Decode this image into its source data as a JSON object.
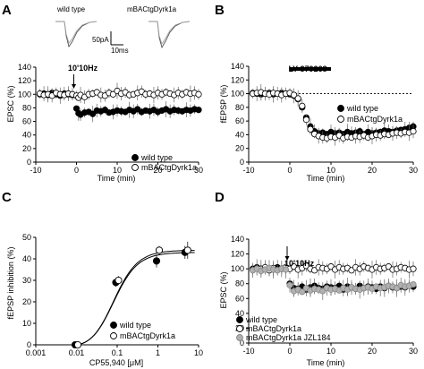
{
  "panels": {
    "A": {
      "label": "A",
      "traces": {
        "wt_label": "wild type",
        "tg_label": "mBACtgDyrk1a",
        "scale_y": "50pA",
        "scale_x": "10ms"
      },
      "annotation": "10'10Hz",
      "ylabel": "EPSC (%)",
      "xlabel": "Time (min)"
    },
    "B": {
      "label": "B",
      "annotation": "LY 379268",
      "ylabel": "fEPSP (%)",
      "xlabel": "Time (min)"
    },
    "C": {
      "label": "C",
      "ylabel": "fEPSP inhibition (%)",
      "xlabel": "CP55,940 [μM]"
    },
    "D": {
      "label": "D",
      "annotation": "10'10Hz",
      "ylabel": "EPSC (%)",
      "xlabel": "Time (min)"
    }
  },
  "chart_data": [
    {
      "panel": "A",
      "type": "scatter",
      "xlim": [
        -10,
        30
      ],
      "ylim": [
        0,
        140
      ],
      "xticks": [
        -10,
        0,
        10,
        20,
        30
      ],
      "yticks": [
        0,
        20,
        40,
        60,
        80,
        100,
        120,
        140
      ],
      "series": [
        {
          "name": "wild type",
          "marker": "filled",
          "x": [
            -9,
            -8,
            -7,
            -6,
            -5,
            -4,
            -3,
            -2,
            -1,
            0,
            0.5,
            1,
            2,
            3,
            4,
            5,
            6,
            7,
            8,
            9,
            10,
            11,
            12,
            13,
            14,
            15,
            16,
            17,
            18,
            19,
            20,
            21,
            22,
            23,
            24,
            25,
            26,
            27,
            28,
            29,
            30
          ],
          "y": [
            100,
            101,
            99,
            102,
            100,
            98,
            101,
            100,
            99,
            79,
            72,
            70,
            73,
            74,
            71,
            76,
            75,
            77,
            73,
            74,
            76,
            75,
            74,
            77,
            75,
            78,
            74,
            76,
            75,
            77,
            74,
            76,
            78,
            75,
            77,
            76,
            75,
            77,
            76,
            78,
            77
          ]
        },
        {
          "name": "mBACtgDyrk1a",
          "marker": "open",
          "x": [
            -9,
            -8,
            -7,
            -6,
            -5,
            -4,
            -3,
            -2,
            -1,
            0,
            0.5,
            1,
            2,
            3,
            4,
            5,
            6,
            7,
            8,
            9,
            10,
            11,
            12,
            13,
            14,
            15,
            16,
            17,
            18,
            19,
            20,
            21,
            22,
            23,
            24,
            25,
            26,
            27,
            28,
            29,
            30
          ],
          "y": [
            101,
            99,
            100,
            98,
            102,
            100,
            99,
            101,
            100,
            98,
            95,
            99,
            96,
            100,
            101,
            103,
            99,
            98,
            102,
            100,
            105,
            101,
            103,
            99,
            100,
            102,
            104,
            100,
            101,
            99,
            102,
            100,
            103,
            101,
            99,
            102,
            100,
            103,
            101,
            102,
            100
          ]
        }
      ]
    },
    {
      "panel": "B",
      "type": "scatter",
      "xlim": [
        -10,
        30
      ],
      "ylim": [
        0,
        140
      ],
      "xticks": [
        -10,
        0,
        10,
        20,
        30
      ],
      "yticks": [
        0,
        20,
        40,
        60,
        80,
        100,
        120,
        140
      ],
      "reference_line": 100,
      "drug_bar": [
        0,
        10
      ],
      "series": [
        {
          "name": "wild type",
          "marker": "filled",
          "x": [
            -9,
            -8,
            -7,
            -6,
            -5,
            -4,
            -3,
            -2,
            -1,
            0,
            1,
            2,
            3,
            4,
            5,
            6,
            7,
            8,
            9,
            10,
            11,
            12,
            13,
            14,
            15,
            16,
            17,
            18,
            19,
            20,
            21,
            22,
            23,
            24,
            25,
            26,
            27,
            28,
            29,
            30
          ],
          "y": [
            101,
            100,
            99,
            100,
            101,
            99,
            100,
            101,
            100,
            99,
            97,
            92,
            80,
            65,
            52,
            45,
            42,
            43,
            41,
            44,
            42,
            43,
            41,
            44,
            42,
            43,
            45,
            41,
            44,
            42,
            43,
            44,
            46,
            45,
            44,
            46,
            47,
            48,
            50,
            52
          ]
        },
        {
          "name": "mBACtgDyrk1a",
          "marker": "open",
          "x": [
            -9,
            -8,
            -7,
            -6,
            -5,
            -4,
            -3,
            -2,
            -1,
            0,
            1,
            2,
            3,
            4,
            5,
            6,
            7,
            8,
            9,
            10,
            11,
            12,
            13,
            14,
            15,
            16,
            17,
            18,
            19,
            20,
            21,
            22,
            23,
            24,
            25,
            26,
            27,
            28,
            29,
            30
          ],
          "y": [
            100,
            101,
            102,
            100,
            99,
            101,
            100,
            98,
            100,
            101,
            98,
            93,
            82,
            62,
            48,
            41,
            38,
            36,
            35,
            37,
            36,
            39,
            35,
            37,
            36,
            38,
            37,
            39,
            36,
            38,
            40,
            39,
            41,
            40,
            42,
            43,
            42,
            44,
            43,
            45
          ]
        }
      ]
    },
    {
      "panel": "C",
      "type": "line",
      "xscale": "log",
      "xlim": [
        0.001,
        10
      ],
      "ylim": [
        0,
        50
      ],
      "xticks": [
        0.001,
        0.01,
        0.1,
        1,
        10
      ],
      "xticklabels": [
        "0.001",
        "0.01",
        "0.1",
        "1",
        "10"
      ],
      "yticks": [
        0,
        10,
        20,
        30,
        40,
        50
      ],
      "series": [
        {
          "name": "wild type",
          "marker": "filled",
          "x": [
            0.01,
            0.1,
            1,
            5
          ],
          "y": [
            0,
            29,
            39,
            43
          ],
          "err": [
            0,
            2,
            3,
            3
          ]
        },
        {
          "name": "mBACtgDyrk1a",
          "marker": "open",
          "x": [
            0.01,
            0.1,
            1,
            5
          ],
          "y": [
            0,
            30,
            44,
            44
          ],
          "err": [
            0,
            2,
            2,
            4
          ]
        }
      ]
    },
    {
      "panel": "D",
      "type": "scatter",
      "xlim": [
        -10,
        30
      ],
      "ylim": [
        0,
        140
      ],
      "xticks": [
        -10,
        0,
        10,
        20,
        30
      ],
      "yticks": [
        0,
        20,
        40,
        60,
        80,
        100,
        120,
        140
      ],
      "series": [
        {
          "name": "wild type",
          "marker": "filled",
          "x": [
            -9,
            -8,
            -7,
            -6,
            -5,
            -4,
            -3,
            -2,
            -1,
            0,
            1,
            2,
            3,
            4,
            5,
            6,
            7,
            8,
            9,
            10,
            11,
            12,
            13,
            14,
            15,
            16,
            17,
            18,
            19,
            20,
            21,
            22,
            23,
            24,
            25,
            26,
            27,
            28,
            29,
            30
          ],
          "y": [
            100,
            102,
            99,
            101,
            100,
            99,
            102,
            100,
            101,
            80,
            74,
            73,
            76,
            72,
            75,
            77,
            74,
            73,
            76,
            75,
            74,
            77,
            72,
            76,
            75,
            73,
            77,
            74,
            76,
            75,
            73,
            76,
            74,
            77,
            75,
            74,
            76,
            75,
            77,
            76
          ]
        },
        {
          "name": "mBACtgDyrk1a",
          "marker": "open",
          "x": [
            -9,
            -8,
            -7,
            -6,
            -5,
            -4,
            -3,
            -2,
            -1,
            0,
            1,
            2,
            3,
            4,
            5,
            6,
            7,
            8,
            9,
            10,
            11,
            12,
            13,
            14,
            15,
            16,
            17,
            18,
            19,
            20,
            21,
            22,
            23,
            24,
            25,
            26,
            27,
            28,
            29,
            30
          ],
          "y": [
            99,
            101,
            100,
            102,
            98,
            101,
            99,
            100,
            102,
            100,
            103,
            99,
            101,
            104,
            100,
            98,
            102,
            101,
            100,
            103,
            99,
            102,
            100,
            101,
            98,
            102,
            100,
            103,
            101,
            99,
            102,
            100,
            101,
            103,
            99,
            100,
            102,
            101,
            99,
            100
          ]
        },
        {
          "name": "mBACtgDyrk1a JZL184",
          "marker": "gray",
          "x": [
            -9,
            -8,
            -7,
            -6,
            -5,
            -4,
            -3,
            -2,
            -1,
            0,
            1,
            2,
            3,
            4,
            5,
            6,
            7,
            8,
            9,
            10,
            11,
            12,
            13,
            14,
            15,
            16,
            17,
            18,
            19,
            20,
            21,
            22,
            23,
            24,
            25,
            26,
            27,
            28,
            29,
            30
          ],
          "y": [
            98,
            100,
            97,
            99,
            101,
            99,
            98,
            100,
            99,
            78,
            70,
            72,
            69,
            74,
            71,
            73,
            72,
            70,
            74,
            72,
            73,
            71,
            74,
            72,
            75,
            73,
            72,
            74,
            75,
            73,
            76,
            74,
            75,
            77,
            76,
            74,
            78,
            76,
            77,
            79
          ]
        }
      ]
    }
  ]
}
